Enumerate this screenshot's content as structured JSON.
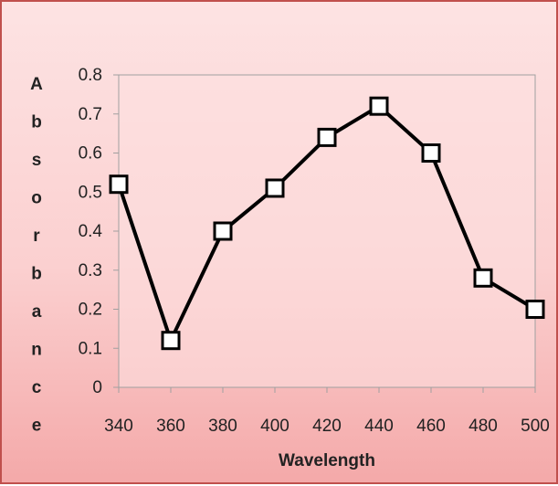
{
  "chart_data": {
    "type": "line",
    "title": "",
    "xlabel": "Wavelength",
    "ylabel": "Absorbance",
    "x": [
      340,
      360,
      380,
      400,
      420,
      440,
      460,
      480,
      500
    ],
    "series": [
      {
        "values": [
          0.52,
          0.12,
          0.4,
          0.51,
          0.64,
          0.72,
          0.6,
          0.28,
          0.2
        ]
      }
    ],
    "xticks": [
      "340",
      "360",
      "380",
      "400",
      "420",
      "440",
      "460",
      "480",
      "500"
    ],
    "yticks": [
      "0",
      "0.1",
      "0.2",
      "0.3",
      "0.4",
      "0.5",
      "0.6",
      "0.7",
      "0.8"
    ],
    "xlim": [
      340,
      500
    ],
    "ylim": [
      0,
      0.8
    ],
    "grid": false,
    "legend": "none",
    "colors": {
      "line": "#000000",
      "marker_fill": "#ffffff",
      "plot_area_border": "#a0a0a0",
      "frame_border": "#c0504d"
    }
  }
}
